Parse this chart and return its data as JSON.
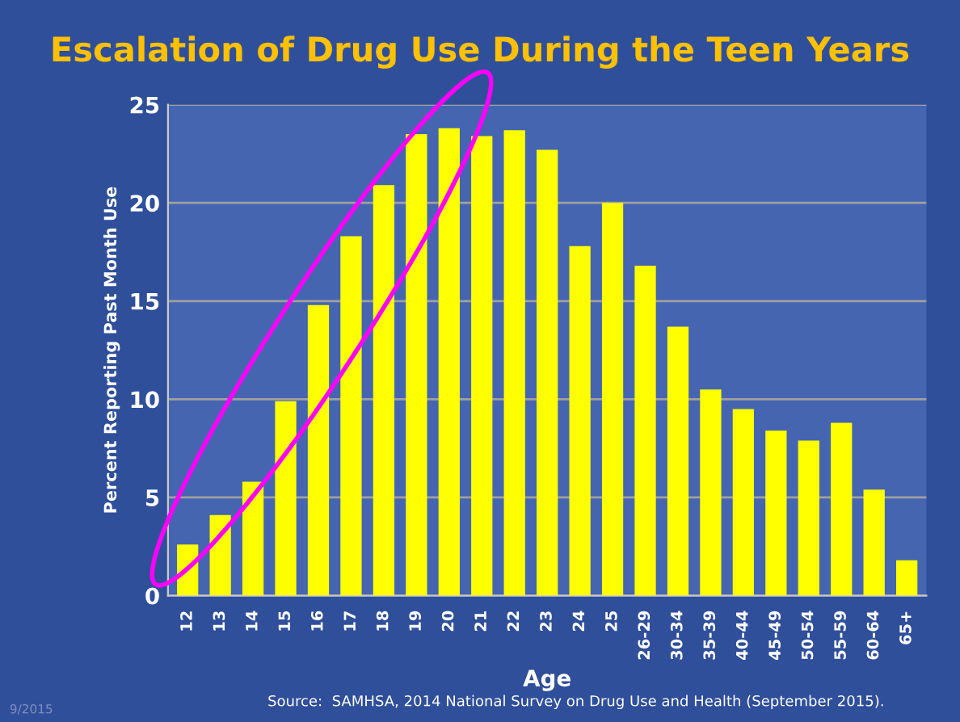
{
  "chart_data": {
    "type": "bar",
    "title": "Escalation of Drug Use During the Teen Years",
    "xlabel": "Age",
    "ylabel": "Percent Reporting Past Month Use",
    "categories": [
      "12",
      "13",
      "14",
      "15",
      "16",
      "17",
      "18",
      "19",
      "20",
      "21",
      "22",
      "23",
      "24",
      "25",
      "26-29",
      "30-34",
      "35-39",
      "40-44",
      "45-49",
      "50-54",
      "55-59",
      "60-64",
      "65+"
    ],
    "values": [
      2.6,
      4.1,
      5.8,
      9.9,
      14.8,
      18.3,
      20.9,
      23.5,
      23.8,
      23.4,
      23.7,
      22.7,
      17.8,
      20.0,
      16.8,
      13.7,
      10.5,
      9.5,
      8.4,
      7.9,
      8.8,
      5.4,
      1.8
    ],
    "color": "#ffff00",
    "ylim": [
      0,
      25
    ],
    "yticks": [
      0,
      5,
      10,
      15,
      20,
      25
    ],
    "grid": "y",
    "annotations": [
      "Source:  SAMHSA, 2014 National Survey on Drug Use and Health (September 2015).",
      "9/2015"
    ]
  }
}
